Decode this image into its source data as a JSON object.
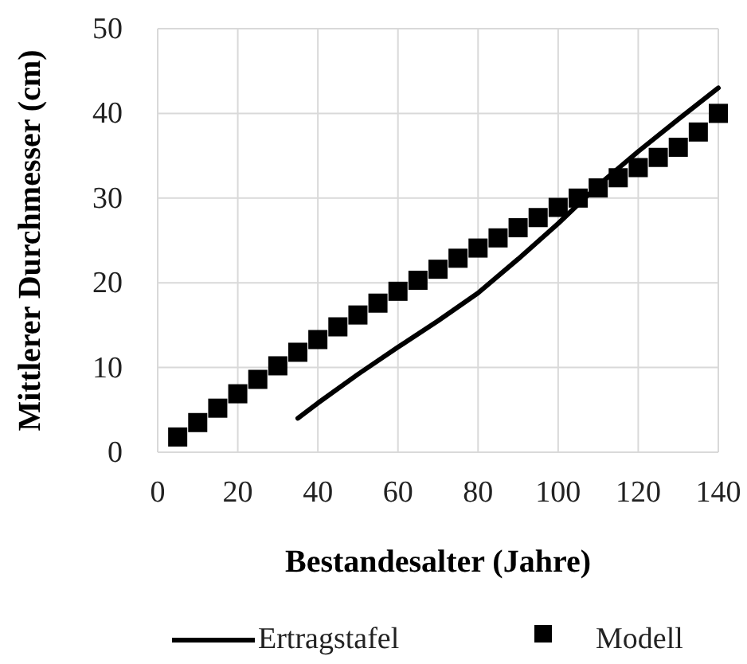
{
  "chart_data": {
    "type": "line",
    "xlabel": "Bestandesalter (Jahre)",
    "ylabel": "Mittlerer Durchmesser (cm)",
    "xlim": [
      0,
      140
    ],
    "xticks": [
      0,
      20,
      40,
      60,
      80,
      100,
      120,
      140
    ],
    "ylim": [
      0,
      50
    ],
    "yticks": [
      0,
      10,
      20,
      30,
      40,
      50
    ],
    "grid": true,
    "legend": "bottom",
    "series": [
      {
        "name": "Ertragstafel",
        "color": "#000000",
        "marker": "none",
        "line_style": "solid",
        "x": [
          35,
          40,
          50,
          60,
          70,
          80,
          90,
          100,
          110,
          120,
          130,
          140
        ],
        "values": [
          4,
          5.8,
          9.2,
          12.4,
          15.5,
          18.8,
          22.8,
          27,
          31.5,
          35.5,
          39.3,
          43
        ]
      },
      {
        "name": "Modell",
        "type": "scatter",
        "color": "#000000",
        "marker": "square",
        "x": [
          5,
          10,
          15,
          20,
          25,
          30,
          35,
          40,
          45,
          50,
          55,
          60,
          65,
          70,
          75,
          80,
          85,
          90,
          95,
          100,
          105,
          110,
          115,
          120,
          125,
          130,
          135,
          140
        ],
        "values": [
          1.8,
          3.5,
          5.2,
          6.9,
          8.6,
          10.2,
          11.8,
          13.3,
          14.8,
          16.2,
          17.6,
          19.0,
          20.3,
          21.6,
          22.9,
          24.1,
          25.3,
          26.5,
          27.7,
          28.9,
          30.0,
          31.2,
          32.4,
          33.6,
          34.8,
          36.0,
          37.8,
          40.0
        ]
      }
    ]
  }
}
